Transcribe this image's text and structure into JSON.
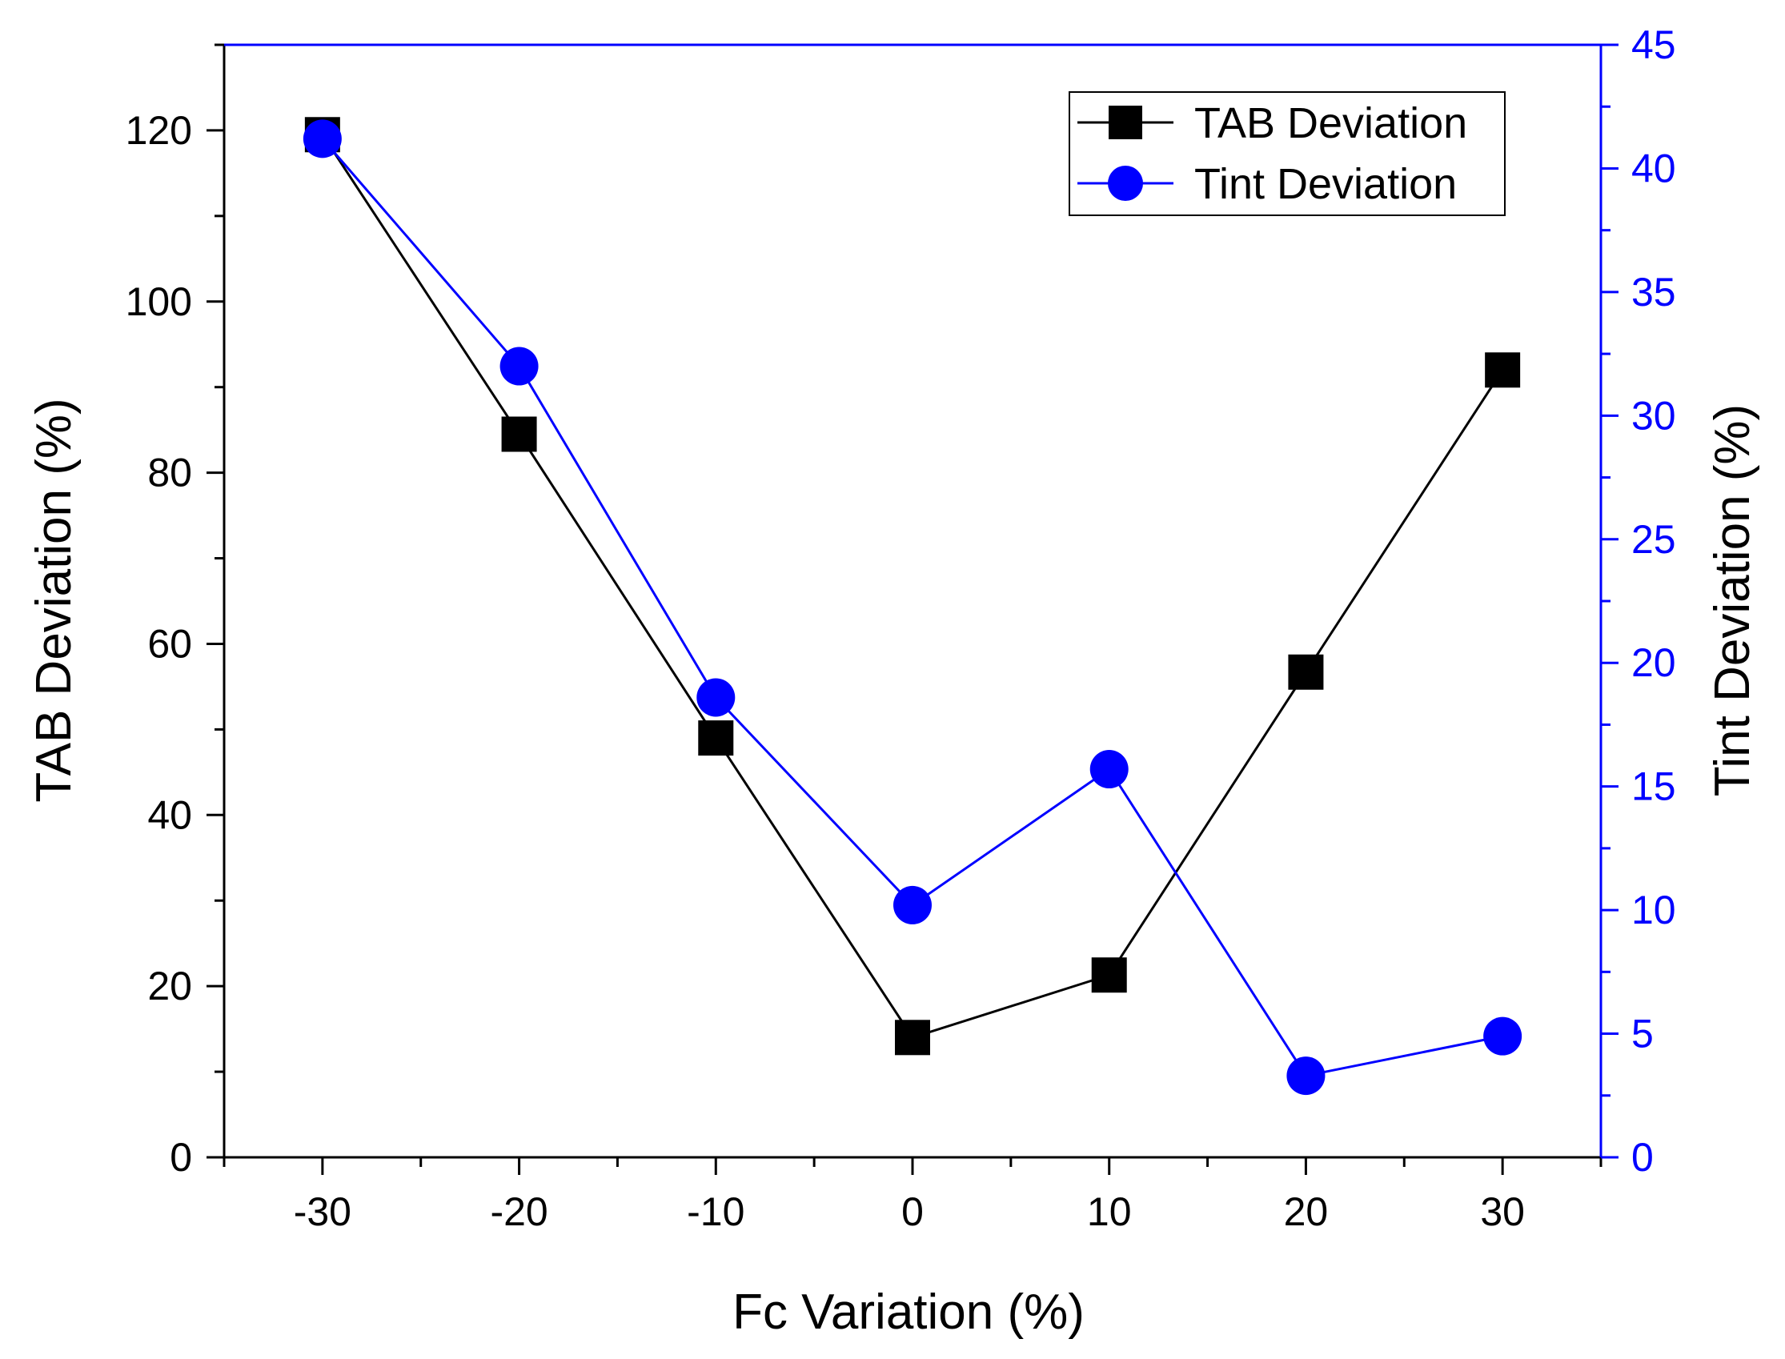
{
  "chart_data": {
    "type": "line",
    "title": "",
    "xlabel": "Fc Variation (%)",
    "ylabel": "TAB Deviation (%)",
    "y2label": "Tint Deviation (%)",
    "x": [
      -30,
      -20,
      -10,
      0,
      10,
      20,
      30
    ],
    "xlim": [
      -35,
      35
    ],
    "ylim": [
      0,
      130
    ],
    "y2lim": [
      0,
      45
    ],
    "xticks": [
      -30,
      -20,
      -10,
      0,
      10,
      20,
      30
    ],
    "yticks": [
      0,
      20,
      40,
      60,
      80,
      100,
      120
    ],
    "y2ticks": [
      0,
      5,
      10,
      15,
      20,
      25,
      30,
      35,
      40,
      45
    ],
    "legend_position": "top-right",
    "grid": false,
    "series": [
      {
        "name": "TAB Deviation",
        "axis": "left",
        "marker": "square",
        "color": "#000000",
        "values": [
          119.5,
          84.5,
          49,
          14,
          21.3,
          56.7,
          92
        ]
      },
      {
        "name": "Tint Deviation",
        "axis": "right",
        "marker": "circle",
        "color": "#0000ff",
        "values": [
          41.2,
          32,
          18.6,
          10.2,
          15.7,
          3.3,
          4.9
        ]
      }
    ]
  }
}
